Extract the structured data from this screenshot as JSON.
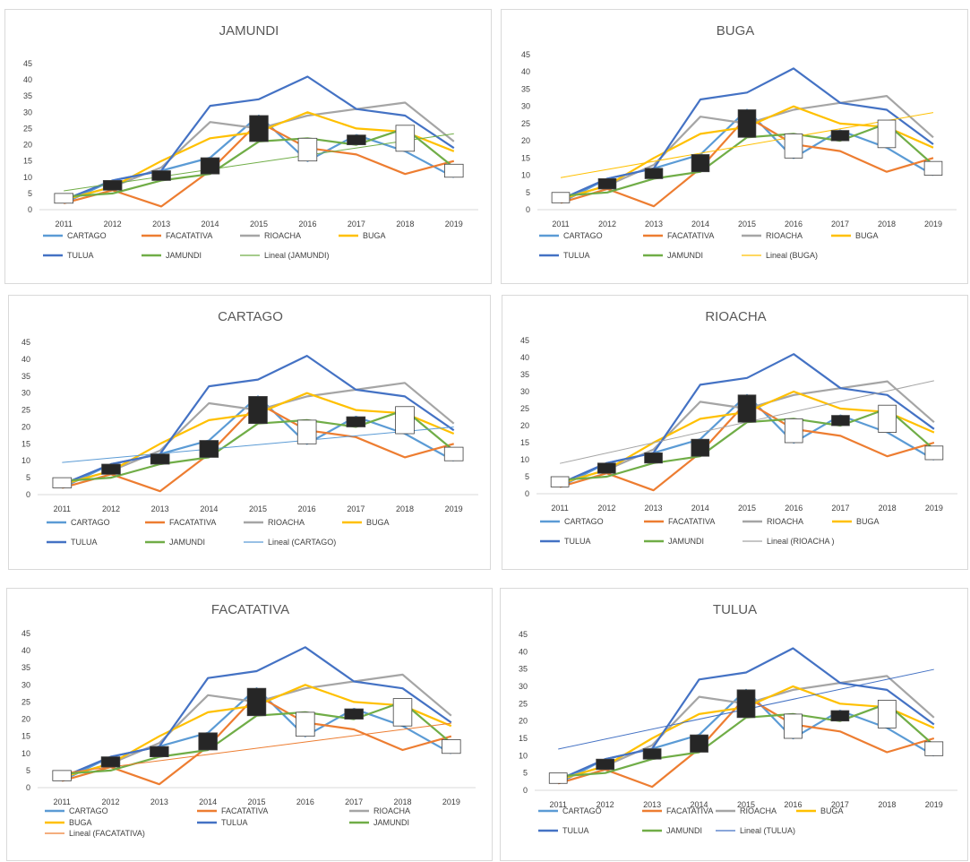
{
  "chart_data": [
    {
      "type": "line",
      "title": "JAMUNDI",
      "categories": [
        "2011",
        "2012",
        "2013",
        "2014",
        "2015",
        "2016",
        "2017",
        "2018",
        "2019"
      ],
      "ylim": [
        0,
        45
      ],
      "yticks": [
        0,
        5,
        10,
        15,
        20,
        25,
        30,
        35,
        40,
        45
      ],
      "series": [
        {
          "name": "CARTAGO",
          "color": "#5b9bd5",
          "values": [
            2,
            9,
            12,
            16,
            29,
            15,
            23,
            18,
            10
          ]
        },
        {
          "name": "FACATATIVA",
          "color": "#ed7d31",
          "values": [
            2,
            6,
            1,
            12,
            27,
            19,
            17,
            11,
            15
          ]
        },
        {
          "name": "RIOACHA",
          "color": "#a5a5a5",
          "values": [
            3,
            7,
            13,
            27,
            25,
            29,
            31,
            33,
            21
          ]
        },
        {
          "name": "BUGA",
          "color": "#ffc000",
          "values": [
            3,
            7,
            15,
            22,
            24,
            30,
            25,
            24,
            18
          ]
        },
        {
          "name": "TULUA",
          "color": "#4472c4",
          "values": [
            3,
            9,
            12,
            32,
            34,
            41,
            31,
            29,
            19
          ]
        },
        {
          "name": "JAMUNDI",
          "color": "#70ad47",
          "values": [
            4,
            5,
            9,
            11,
            21,
            22,
            20,
            25,
            13
          ]
        }
      ],
      "trendline": {
        "name": "Lineal (JAMUNDI)",
        "color": "#70ad47",
        "start": 5.8,
        "end": 23.4
      },
      "candles": [
        {
          "open": 2,
          "close": 5
        },
        {
          "open": 9,
          "close": 6
        },
        {
          "open": 12,
          "close": 9
        },
        {
          "open": 16,
          "close": 11
        },
        {
          "open": 29,
          "close": 21
        },
        {
          "open": 15,
          "close": 22
        },
        {
          "open": 23,
          "close": 20
        },
        {
          "open": 18,
          "close": 26
        },
        {
          "open": 10,
          "close": 14
        }
      ],
      "legend": {
        "rows": [
          [
            "CARTAGO",
            "FACATATIVA",
            "RIOACHA",
            "BUGA"
          ],
          [
            "TULUA",
            "JAMUNDI",
            "Lineal (JAMUNDI)"
          ]
        ]
      }
    },
    {
      "type": "line",
      "title": "BUGA",
      "categories": [
        "2011",
        "2012",
        "2013",
        "2014",
        "2015",
        "2016",
        "2017",
        "2018",
        "2019"
      ],
      "ylim": [
        0,
        45
      ],
      "yticks": [
        0,
        5,
        10,
        15,
        20,
        25,
        30,
        35,
        40,
        45
      ],
      "series": [
        {
          "name": "CARTAGO",
          "color": "#5b9bd5",
          "values": [
            2,
            9,
            12,
            16,
            29,
            15,
            23,
            18,
            10
          ]
        },
        {
          "name": "FACATATIVA",
          "color": "#ed7d31",
          "values": [
            2,
            6,
            1,
            12,
            27,
            19,
            17,
            11,
            15
          ]
        },
        {
          "name": "RIOACHA",
          "color": "#a5a5a5",
          "values": [
            3,
            7,
            13,
            27,
            25,
            29,
            31,
            33,
            21
          ]
        },
        {
          "name": "BUGA",
          "color": "#ffc000",
          "values": [
            3,
            7,
            15,
            22,
            24,
            30,
            25,
            24,
            18
          ]
        },
        {
          "name": "TULUA",
          "color": "#4472c4",
          "values": [
            3,
            9,
            12,
            32,
            34,
            41,
            31,
            29,
            19
          ]
        },
        {
          "name": "JAMUNDI",
          "color": "#70ad47",
          "values": [
            4,
            5,
            9,
            11,
            21,
            22,
            20,
            25,
            13
          ]
        }
      ],
      "trendline": {
        "name": "Lineal (BUGA)",
        "color": "#ffc000",
        "start": 9.3,
        "end": 28.2
      },
      "candles": [
        {
          "open": 2,
          "close": 5
        },
        {
          "open": 9,
          "close": 6
        },
        {
          "open": 12,
          "close": 9
        },
        {
          "open": 16,
          "close": 11
        },
        {
          "open": 29,
          "close": 21
        },
        {
          "open": 15,
          "close": 22
        },
        {
          "open": 23,
          "close": 20
        },
        {
          "open": 18,
          "close": 26
        },
        {
          "open": 10,
          "close": 14
        }
      ],
      "legend": {
        "rows": [
          [
            "CARTAGO",
            "FACATATIVA",
            "RIOACHA",
            "BUGA"
          ],
          [
            "TULUA",
            "JAMUNDI",
            "Lineal (BUGA)"
          ]
        ]
      }
    },
    {
      "type": "line",
      "title": "CARTAGO",
      "categories": [
        "2011",
        "2012",
        "2013",
        "2014",
        "2015",
        "2016",
        "2017",
        "2018",
        "2019"
      ],
      "ylim": [
        0,
        45
      ],
      "yticks": [
        0,
        5,
        10,
        15,
        20,
        25,
        30,
        35,
        40,
        45
      ],
      "series": [
        {
          "name": "CARTAGO",
          "color": "#5b9bd5",
          "values": [
            2,
            9,
            12,
            16,
            29,
            15,
            23,
            18,
            10
          ]
        },
        {
          "name": "FACATATIVA",
          "color": "#ed7d31",
          "values": [
            2,
            6,
            1,
            12,
            27,
            19,
            17,
            11,
            15
          ]
        },
        {
          "name": "RIOACHA",
          "color": "#a5a5a5",
          "values": [
            3,
            7,
            13,
            27,
            25,
            29,
            31,
            33,
            21
          ]
        },
        {
          "name": "BUGA",
          "color": "#ffc000",
          "values": [
            3,
            7,
            15,
            22,
            24,
            30,
            25,
            24,
            18
          ]
        },
        {
          "name": "TULUA",
          "color": "#4472c4",
          "values": [
            3,
            9,
            12,
            32,
            34,
            41,
            31,
            29,
            19
          ]
        },
        {
          "name": "JAMUNDI",
          "color": "#70ad47",
          "values": [
            4,
            5,
            9,
            11,
            21,
            22,
            20,
            25,
            13
          ]
        }
      ],
      "trendline": {
        "name": "Lineal (CARTAGO)",
        "color": "#5b9bd5",
        "start": 9.5,
        "end": 20.0
      },
      "candles": [
        {
          "open": 2,
          "close": 5
        },
        {
          "open": 9,
          "close": 6
        },
        {
          "open": 12,
          "close": 9
        },
        {
          "open": 16,
          "close": 11
        },
        {
          "open": 29,
          "close": 21
        },
        {
          "open": 15,
          "close": 22
        },
        {
          "open": 23,
          "close": 20
        },
        {
          "open": 18,
          "close": 26
        },
        {
          "open": 10,
          "close": 14
        }
      ],
      "legend": {
        "rows": [
          [
            "CARTAGO",
            "FACATATIVA",
            "RIOACHA",
            "BUGA"
          ],
          [
            "TULUA",
            "JAMUNDI",
            "Lineal (CARTAGO)"
          ]
        ]
      }
    },
    {
      "type": "line",
      "title": "RIOACHA",
      "categories": [
        "2011",
        "2012",
        "2013",
        "2014",
        "2015",
        "2016",
        "2017",
        "2018",
        "2019"
      ],
      "ylim": [
        0,
        45
      ],
      "yticks": [
        0,
        5,
        10,
        15,
        20,
        25,
        30,
        35,
        40,
        45
      ],
      "series": [
        {
          "name": "CARTAGO",
          "color": "#5b9bd5",
          "values": [
            2,
            9,
            12,
            16,
            29,
            15,
            23,
            18,
            10
          ]
        },
        {
          "name": "FACATATIVA",
          "color": "#ed7d31",
          "values": [
            2,
            6,
            1,
            12,
            27,
            19,
            17,
            11,
            15
          ]
        },
        {
          "name": "RIOACHA",
          "color": "#a5a5a5",
          "values": [
            3,
            7,
            13,
            27,
            25,
            29,
            31,
            33,
            21
          ]
        },
        {
          "name": "BUGA",
          "color": "#ffc000",
          "values": [
            3,
            7,
            15,
            22,
            24,
            30,
            25,
            24,
            18
          ]
        },
        {
          "name": "TULUA",
          "color": "#4472c4",
          "values": [
            3,
            9,
            12,
            32,
            34,
            41,
            31,
            29,
            19
          ]
        },
        {
          "name": "JAMUNDI",
          "color": "#70ad47",
          "values": [
            4,
            5,
            9,
            11,
            21,
            22,
            20,
            25,
            13
          ]
        }
      ],
      "trendline": {
        "name": "Lineal (RIOACHA )",
        "color": "#a5a5a5",
        "start": 8.9,
        "end": 33.2
      },
      "candles": [
        {
          "open": 2,
          "close": 5
        },
        {
          "open": 9,
          "close": 6
        },
        {
          "open": 12,
          "close": 9
        },
        {
          "open": 16,
          "close": 11
        },
        {
          "open": 29,
          "close": 21
        },
        {
          "open": 15,
          "close": 22
        },
        {
          "open": 23,
          "close": 20
        },
        {
          "open": 18,
          "close": 26
        },
        {
          "open": 10,
          "close": 14
        }
      ],
      "legend": {
        "rows": [
          [
            "CARTAGO",
            "FACATATIVA",
            "RIOACHA",
            "BUGA"
          ],
          [
            "TULUA",
            "JAMUNDI",
            "Lineal (RIOACHA )"
          ]
        ]
      }
    },
    {
      "type": "line",
      "title": "FACATATIVA",
      "categories": [
        "2011",
        "2012",
        "2013",
        "2014",
        "2015",
        "2016",
        "2017",
        "2018",
        "2019"
      ],
      "ylim": [
        0,
        45
      ],
      "yticks": [
        0,
        5,
        10,
        15,
        20,
        25,
        30,
        35,
        40,
        45
      ],
      "series": [
        {
          "name": "CARTAGO",
          "color": "#5b9bd5",
          "values": [
            2,
            9,
            12,
            16,
            29,
            15,
            23,
            18,
            10
          ]
        },
        {
          "name": "FACATATIVA",
          "color": "#ed7d31",
          "values": [
            2,
            6,
            1,
            12,
            27,
            19,
            17,
            11,
            15
          ]
        },
        {
          "name": "RIOACHA",
          "color": "#a5a5a5",
          "values": [
            3,
            7,
            13,
            27,
            25,
            29,
            31,
            33,
            21
          ]
        },
        {
          "name": "BUGA",
          "color": "#ffc000",
          "values": [
            3,
            7,
            15,
            22,
            24,
            30,
            25,
            24,
            18
          ]
        },
        {
          "name": "TULUA",
          "color": "#4472c4",
          "values": [
            3,
            9,
            12,
            32,
            34,
            41,
            31,
            29,
            19
          ]
        },
        {
          "name": "JAMUNDI",
          "color": "#70ad47",
          "values": [
            4,
            5,
            9,
            11,
            21,
            22,
            20,
            25,
            13
          ]
        }
      ],
      "trendline": {
        "name": "Lineal (FACATATIVA)",
        "color": "#ed7d31",
        "start": 4.2,
        "end": 18.8
      },
      "candles": [
        {
          "open": 2,
          "close": 5
        },
        {
          "open": 9,
          "close": 6
        },
        {
          "open": 12,
          "close": 9
        },
        {
          "open": 16,
          "close": 11
        },
        {
          "open": 29,
          "close": 21
        },
        {
          "open": 15,
          "close": 22
        },
        {
          "open": 23,
          "close": 20
        },
        {
          "open": 18,
          "close": 26
        },
        {
          "open": 10,
          "close": 14
        }
      ],
      "legend": {
        "rows": [
          [
            "CARTAGO",
            "FACATATIVA",
            "RIOACHA"
          ],
          [
            "BUGA",
            "TULUA",
            "JAMUNDI"
          ],
          [
            "Lineal (FACATATIVA)"
          ]
        ]
      }
    },
    {
      "type": "line",
      "title": "TULUA",
      "categories": [
        "2011",
        "2012",
        "2013",
        "2014",
        "2015",
        "2016",
        "2017",
        "2018",
        "2019"
      ],
      "ylim": [
        0,
        45
      ],
      "yticks": [
        0,
        5,
        10,
        15,
        20,
        25,
        30,
        35,
        40,
        45
      ],
      "series": [
        {
          "name": "CARTAGO",
          "color": "#5b9bd5",
          "values": [
            2,
            9,
            12,
            16,
            29,
            15,
            23,
            18,
            10
          ]
        },
        {
          "name": "FACATATIVA",
          "color": "#ed7d31",
          "values": [
            2,
            6,
            1,
            12,
            27,
            19,
            17,
            11,
            15
          ]
        },
        {
          "name": "RIOACHA",
          "color": "#a5a5a5",
          "values": [
            3,
            7,
            13,
            27,
            25,
            29,
            31,
            33,
            21
          ]
        },
        {
          "name": "BUGA",
          "color": "#ffc000",
          "values": [
            3,
            7,
            15,
            22,
            24,
            30,
            25,
            24,
            18
          ]
        },
        {
          "name": "TULUA",
          "color": "#4472c4",
          "values": [
            3,
            9,
            12,
            32,
            34,
            41,
            31,
            29,
            19
          ]
        },
        {
          "name": "JAMUNDI",
          "color": "#70ad47",
          "values": [
            4,
            5,
            9,
            11,
            21,
            22,
            20,
            25,
            13
          ]
        }
      ],
      "trendline": {
        "name": "Lineal (TULUA)",
        "color": "#4472c4",
        "start": 11.9,
        "end": 34.9
      },
      "candles": [
        {
          "open": 2,
          "close": 5
        },
        {
          "open": 9,
          "close": 6
        },
        {
          "open": 12,
          "close": 9
        },
        {
          "open": 16,
          "close": 11
        },
        {
          "open": 29,
          "close": 21
        },
        {
          "open": 15,
          "close": 22
        },
        {
          "open": 23,
          "close": 20
        },
        {
          "open": 18,
          "close": 26
        },
        {
          "open": 10,
          "close": 14
        }
      ],
      "legend": {
        "rows": [
          [
            "CARTAGO",
            "FACATATIVA",
            "RIOACHA",
            "BUGA"
          ],
          [
            "TULUA",
            "JAMUNDI",
            "Lineal (TULUA)"
          ]
        ]
      }
    }
  ],
  "candle_colors": {
    "up": "#ffffff",
    "down": "#262626",
    "outline": "#404040"
  }
}
